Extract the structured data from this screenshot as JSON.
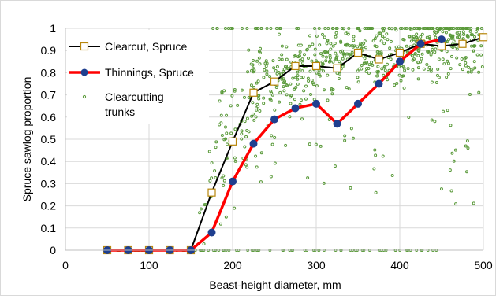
{
  "chart_data": {
    "type": "line",
    "title": "",
    "xlabel": "Beast-height diameter, mm",
    "ylabel": "Spruce sawlog proportion",
    "xlim": [
      0,
      500
    ],
    "ylim": [
      0,
      1
    ],
    "x_ticks": [
      0,
      100,
      200,
      300,
      400,
      500
    ],
    "y_ticks": [
      0,
      0.1,
      0.2,
      0.3,
      0.4,
      0.5,
      0.6,
      0.7,
      0.8,
      0.9,
      1
    ],
    "grid": "major both axes",
    "legend_position": "top-left",
    "series": [
      {
        "name": "Clearcut, Spruce",
        "type": "line",
        "color": "#000000",
        "marker": "square",
        "marker_fill": "#ffffff",
        "marker_edge": "#b8860b",
        "x": [
          50,
          75,
          100,
          125,
          150,
          175,
          200,
          225,
          250,
          275,
          300,
          325,
          350,
          375,
          400,
          425,
          450,
          475,
          500
        ],
        "y": [
          0,
          0,
          0,
          0,
          0,
          0.26,
          0.49,
          0.71,
          0.76,
          0.83,
          0.83,
          0.82,
          0.89,
          0.86,
          0.89,
          0.93,
          0.92,
          0.93,
          0.96
        ]
      },
      {
        "name": "Thinnings, Spruce",
        "type": "line",
        "color": "#ff0000",
        "marker": "circle",
        "marker_fill": "#1f3f8f",
        "x": [
          50,
          75,
          100,
          125,
          150,
          175,
          200,
          225,
          250,
          275,
          300,
          325,
          350,
          375,
          400,
          425,
          450
        ],
        "y": [
          0,
          0,
          0,
          0,
          0,
          0.08,
          0.31,
          0.48,
          0.59,
          0.64,
          0.66,
          0.57,
          0.66,
          0.75,
          0.85,
          0.93,
          0.95
        ]
      },
      {
        "name": "Clearcutting trunks",
        "name_lines": [
          "Clearcutting",
          "trunks"
        ],
        "type": "scatter",
        "color": "#5a9a3a",
        "marker": "small-circle"
      }
    ]
  }
}
